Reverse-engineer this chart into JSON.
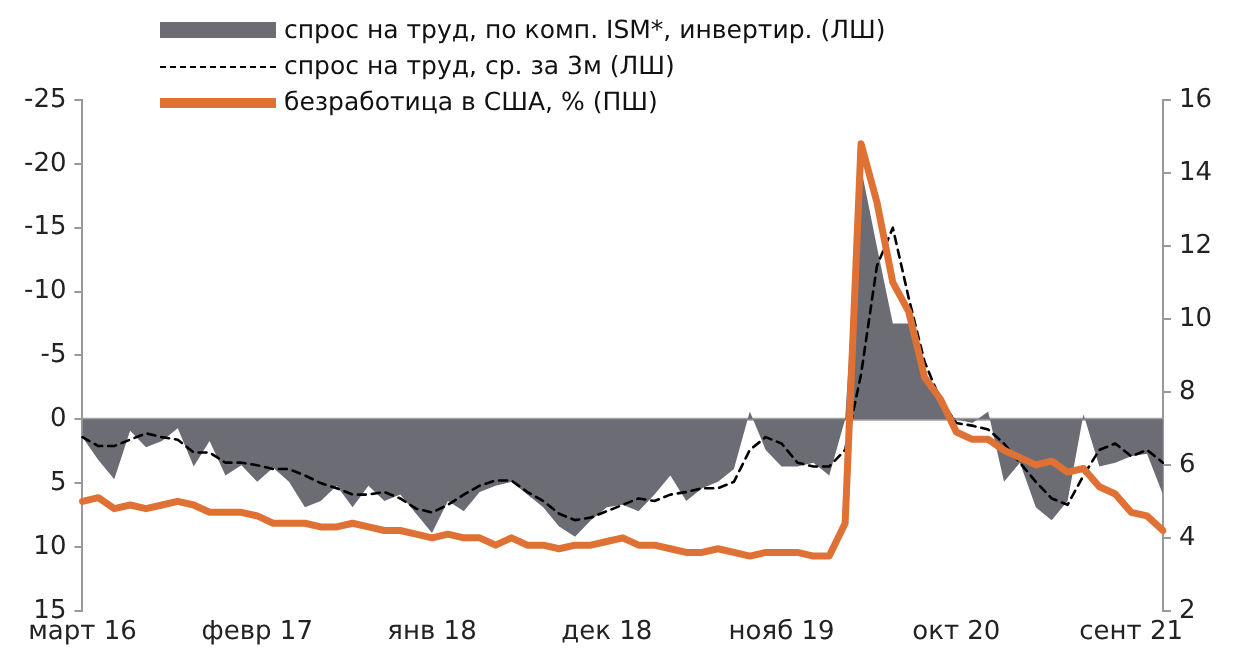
{
  "chart_data": {
    "type": "line",
    "categories": [
      "март 16",
      null,
      null,
      null,
      null,
      null,
      null,
      null,
      null,
      null,
      null,
      "февр 17",
      null,
      null,
      null,
      null,
      null,
      null,
      null,
      null,
      null,
      null,
      "янв 18",
      null,
      null,
      null,
      null,
      null,
      null,
      null,
      null,
      null,
      null,
      "дек 18",
      null,
      null,
      null,
      null,
      null,
      null,
      null,
      null,
      null,
      null,
      "нояб 19",
      null,
      null,
      null,
      null,
      null,
      null,
      null,
      null,
      null,
      null,
      "окт 20",
      null,
      null,
      null,
      null,
      null,
      null,
      null,
      null,
      null,
      null,
      "сент 21",
      null,
      null
    ],
    "series": [
      {
        "name": "спрос на труд, по комп. ISM*, инвертир.  (ЛШ)",
        "type": "area",
        "color": "#6b6c74",
        "values": [
          1.4,
          3.2,
          4.7,
          0.9,
          2.2,
          1.7,
          0.7,
          3.7,
          1.7,
          4.4,
          3.6,
          4.9,
          3.8,
          4.9,
          6.9,
          6.4,
          5.2,
          6.9,
          5.2,
          6.4,
          5.9,
          7.4,
          8.9,
          6.4,
          7.2,
          5.7,
          5.2,
          4.9,
          5.9,
          6.9,
          8.4,
          9.2,
          7.9,
          6.9,
          6.7,
          7.2,
          5.9,
          4.4,
          6.4,
          5.4,
          4.9,
          3.9,
          -0.6,
          2.4,
          3.7,
          3.7,
          3.4,
          4.4,
          0,
          -19.7,
          -13.5,
          -7.5,
          -7.5,
          -3.5,
          -1,
          0,
          0.3,
          -0.6,
          4.9,
          3.4,
          6.9,
          7.9,
          6.4,
          -0.4,
          3.7,
          3.4,
          2.9,
          2.7,
          5.9
        ]
      },
      {
        "name": "спрос на труд, ср. за 3м (ЛШ)",
        "line_style": "dashed",
        "color": "#000000",
        "values": [
          1.4,
          2.1,
          2.1,
          1.6,
          1.1,
          1.4,
          1.6,
          2.6,
          2.6,
          3.4,
          3.4,
          3.6,
          3.9,
          3.9,
          4.4,
          5,
          5.4,
          5.9,
          5.9,
          5.7,
          6.2,
          7,
          7.3,
          6.7,
          5.9,
          5.2,
          4.8,
          4.8,
          5.7,
          6.4,
          7.4,
          7.9,
          7.7,
          7.2,
          6.7,
          6.2,
          6.4,
          5.9,
          5.7,
          5.4,
          5.4,
          4.9,
          2.4,
          1.4,
          1.9,
          3.4,
          3.7,
          3.7,
          2.4,
          -3.5,
          -12,
          -15,
          -9.5,
          -4.5,
          -1.5,
          0.3,
          0.5,
          0.8,
          1.9,
          3.4,
          4.9,
          6.2,
          6.7,
          4.4,
          2.4,
          1.9,
          2.9,
          2.4,
          3.4
        ]
      },
      {
        "name": "безработица в США, % (ПШ)",
        "line_style": "solid",
        "axis": "y2",
        "color": "#e07134",
        "values": [
          5,
          5.1,
          4.8,
          4.9,
          4.8,
          4.9,
          5,
          4.9,
          4.7,
          4.7,
          4.7,
          4.6,
          4.4,
          4.4,
          4.4,
          4.3,
          4.3,
          4.4,
          4.3,
          4.2,
          4.2,
          4.1,
          4,
          4.1,
          4,
          4,
          3.8,
          4,
          3.8,
          3.8,
          3.7,
          3.8,
          3.8,
          3.9,
          4,
          3.8,
          3.8,
          3.7,
          3.6,
          3.6,
          3.7,
          3.6,
          3.5,
          3.6,
          3.6,
          3.6,
          3.5,
          3.5,
          4.4,
          14.8,
          13.2,
          11,
          10.2,
          8.4,
          7.8,
          6.9,
          6.7,
          6.7,
          6.4,
          6.2,
          6,
          6.1,
          5.8,
          5.9,
          5.4,
          5.2,
          4.7,
          4.6,
          4.2
        ]
      }
    ],
    "ylim": [
      15,
      -25
    ],
    "yticks": [
      -25,
      -20,
      -15,
      -10,
      -5,
      0,
      5,
      10,
      15
    ],
    "y2lim": [
      2,
      16
    ],
    "y2ticks": [
      2,
      4,
      6,
      8,
      10,
      12,
      14,
      16
    ],
    "ref_lines": [
      {
        "axis": "y",
        "value": 0,
        "color": "#a0a0a0"
      }
    ],
    "grid": false,
    "legend": "top left"
  }
}
